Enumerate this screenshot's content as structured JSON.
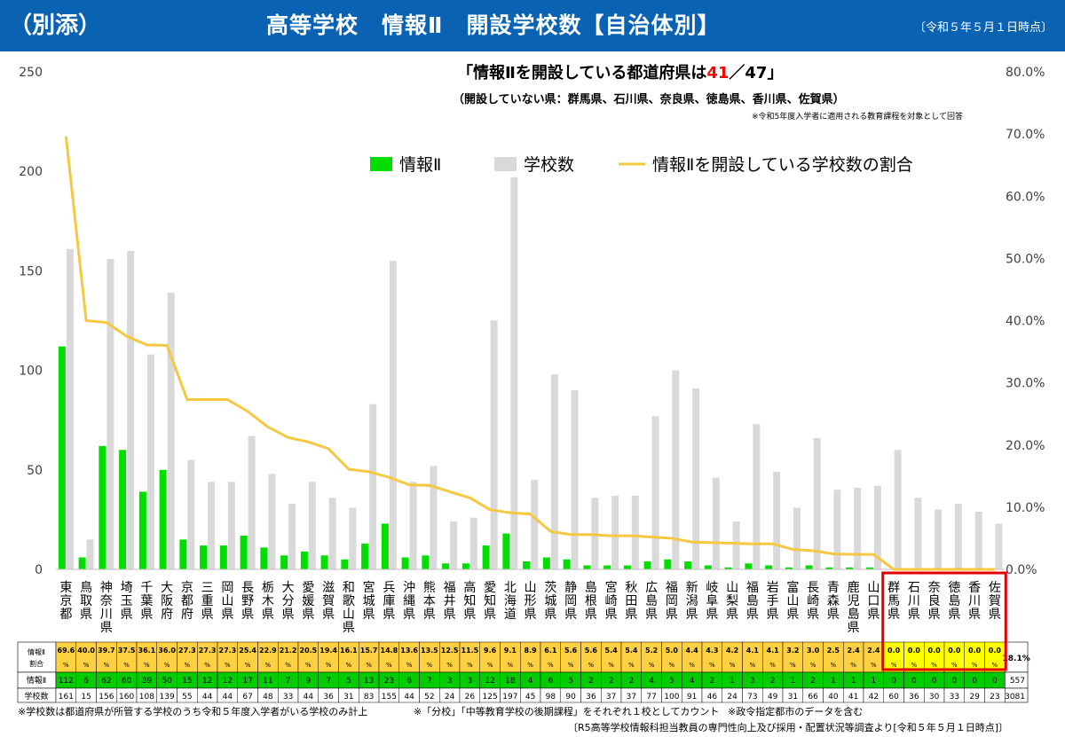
{
  "header": {
    "label": "（別添）",
    "title": "高等学校　情報Ⅱ　開設学校数【自治体別】",
    "date": "〔令和５年５月１日時点〕"
  },
  "annotation": {
    "main_prefix": "「情報Ⅱを開設している都道府県は",
    "main_count": "41",
    "main_suffix": "／47」",
    "sub": "（開設していない県：群馬県、石川県、奈良県、徳島県、香川県、佐賀県）",
    "note": "※令和5年度入学者に適用される教育課程を対象として回答"
  },
  "colors": {
    "header": "#0a62b3",
    "info2_bar": "#00dd00",
    "school_bar": "#d9d9d9",
    "ratio_line": "#f5c842",
    "ratio_count": "#ff0000",
    "highlight_box": "#e00000",
    "ratio_row_fill": "#ffd040",
    "zero_ratio_fill": "#ffff00",
    "info2_row_fill": "#00cc00"
  },
  "chart_data": {
    "type": "bar",
    "categories": [
      "東京都",
      "鳥取県",
      "神奈川県",
      "埼玉県",
      "千葉県",
      "大阪府",
      "京都府",
      "三重県",
      "岡山県",
      "長野県",
      "栃木県",
      "大分県",
      "愛媛県",
      "滋賀県",
      "和歌山県",
      "宮城県",
      "兵庫県",
      "沖縄県",
      "熊本県",
      "福井県",
      "高知県",
      "愛知県",
      "北海道",
      "山形県",
      "茨城県",
      "静岡県",
      "島根県",
      "宮崎県",
      "秋田県",
      "広島県",
      "福岡県",
      "新潟県",
      "岐阜県",
      "山梨県",
      "福島県",
      "岩手県",
      "富山県",
      "長崎県",
      "青森県",
      "鹿児島県",
      "山口県",
      "群馬県",
      "石川県",
      "奈良県",
      "徳島県",
      "香川県",
      "佐賀県"
    ],
    "series": [
      {
        "name": "情報Ⅱ",
        "axis": "left",
        "kind": "bar",
        "values": [
          112,
          6,
          62,
          60,
          39,
          50,
          15,
          12,
          12,
          17,
          11,
          7,
          9,
          7,
          5,
          13,
          23,
          6,
          7,
          3,
          3,
          12,
          18,
          4,
          6,
          5,
          2,
          2,
          2,
          4,
          5,
          4,
          2,
          1,
          3,
          2,
          1,
          2,
          1,
          1,
          1,
          0,
          0,
          0,
          0,
          0,
          0
        ]
      },
      {
        "name": "学校数",
        "axis": "left",
        "kind": "bar",
        "values": [
          161,
          15,
          156,
          160,
          108,
          139,
          55,
          44,
          44,
          67,
          48,
          33,
          44,
          36,
          31,
          83,
          155,
          44,
          52,
          24,
          26,
          125,
          197,
          45,
          98,
          90,
          36,
          37,
          37,
          77,
          100,
          91,
          46,
          24,
          73,
          49,
          31,
          66,
          40,
          41,
          42,
          60,
          36,
          30,
          33,
          29,
          23
        ]
      },
      {
        "name": "情報Ⅱを開設している学校数の割合",
        "axis": "right",
        "kind": "line",
        "values": [
          69.6,
          40.0,
          39.7,
          37.5,
          36.1,
          36.0,
          27.3,
          27.3,
          27.3,
          25.4,
          22.9,
          21.2,
          20.5,
          19.4,
          16.1,
          15.7,
          14.8,
          13.6,
          13.5,
          12.5,
          11.5,
          9.6,
          9.1,
          8.9,
          6.1,
          5.6,
          5.6,
          5.4,
          5.4,
          5.2,
          5.0,
          4.4,
          4.3,
          4.2,
          4.1,
          4.1,
          3.2,
          3.0,
          2.5,
          2.4,
          2.4,
          0.0,
          0.0,
          0.0,
          0.0,
          0.0,
          0.0
        ]
      }
    ],
    "ylim": [
      0,
      250
    ],
    "y_ticks": [
      "0",
      "50",
      "100",
      "150",
      "200",
      "250"
    ],
    "y2lim": [
      0,
      80
    ],
    "y2_ticks": [
      "0.0%",
      "10.0%",
      "20.0%",
      "30.0%",
      "40.0%",
      "50.0%",
      "60.0%",
      "70.0%",
      "80.0%"
    ],
    "grid": false,
    "legend": "top-center",
    "highlighted_categories": [
      "群馬県",
      "石川県",
      "奈良県",
      "徳島県",
      "香川県",
      "佐賀県"
    ]
  },
  "table": {
    "row_ratio_label": [
      "情報Ⅱ",
      "割合"
    ],
    "row_info2_label": "情報Ⅱ",
    "row_schools_label": "学校数",
    "percent_unit": "%",
    "total_ratio": "18.1%",
    "total_info2": "557",
    "total_schools": "3081"
  },
  "footnotes": {
    "f1": "※学校数は都道府県が所管する学校のうち令和５年度入学者がいる学校のみ計上",
    "f2": "※「分校」「中等教育学校の後期課程」をそれぞれ１校としてカウント",
    "f3": "※政令指定都市のデータを含む",
    "source": "〔R5高等学校情報科担当教員の専門性向上及び採用・配置状況等調査より[令和５年５月１日時点]〕"
  }
}
